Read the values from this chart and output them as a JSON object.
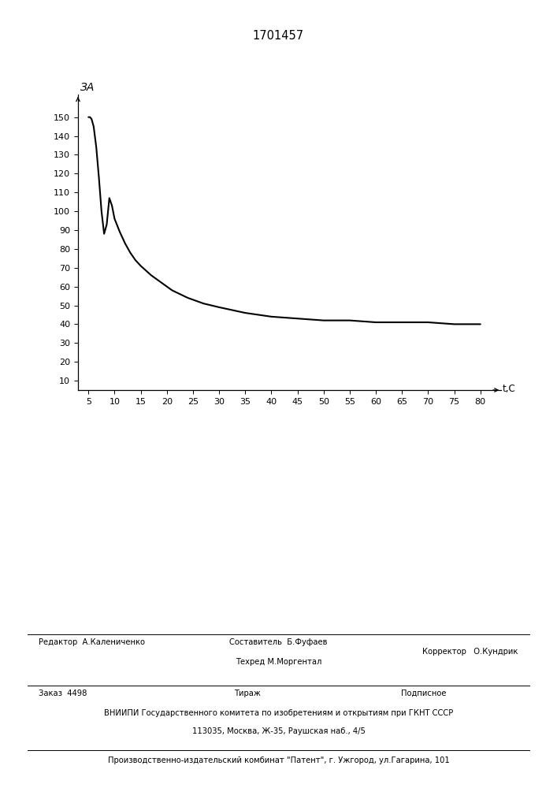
{
  "title": "1701457",
  "ylabel": "ЗА",
  "xlabel": "t,С",
  "xlim": [
    3,
    84
  ],
  "ylim": [
    5,
    162
  ],
  "xticks": [
    5,
    10,
    15,
    20,
    25,
    30,
    35,
    40,
    45,
    50,
    55,
    60,
    65,
    70,
    75,
    80
  ],
  "yticks": [
    10,
    20,
    30,
    40,
    50,
    60,
    70,
    80,
    90,
    100,
    110,
    120,
    130,
    140,
    150
  ],
  "curve_x": [
    5,
    5.3,
    5.6,
    6.0,
    6.5,
    7.0,
    7.5,
    8.0,
    8.5,
    9.0,
    9.5,
    10.0,
    11,
    12,
    13,
    14,
    15,
    17,
    19,
    21,
    24,
    27,
    30,
    35,
    40,
    45,
    50,
    55,
    60,
    65,
    70,
    75,
    80
  ],
  "curve_y": [
    150,
    150,
    149,
    145,
    134,
    118,
    100,
    88,
    93,
    107,
    103,
    96,
    89,
    83,
    78,
    74,
    71,
    66,
    62,
    58,
    54,
    51,
    49,
    46,
    44,
    43,
    42,
    42,
    41,
    41,
    41,
    40,
    40
  ],
  "line_color": "#000000",
  "line_width": 1.5,
  "background_color": "#ffffff",
  "footer_left1": "Редактор  А.Калениченко",
  "footer_center1a": "Составитель  Б.Фуфаев",
  "footer_center1b": "Техред М.Моргентал",
  "footer_right1": "Корректор   О.Кундрик",
  "footer_left2": "Заказ  4498",
  "footer_center2": "Тираж",
  "footer_right2": "Подписное",
  "footer_line3": "ВНИИПИ Государственного комитета по изобретениям и открытиям при ГКНТ СССР",
  "footer_line4": "113035, Москва, Ж-35, Раушская наб., 4/5",
  "footer_line5": "Производственно-издательский комбинат \"Патент\", г. Ужгород, ул.Гагарина, 101"
}
